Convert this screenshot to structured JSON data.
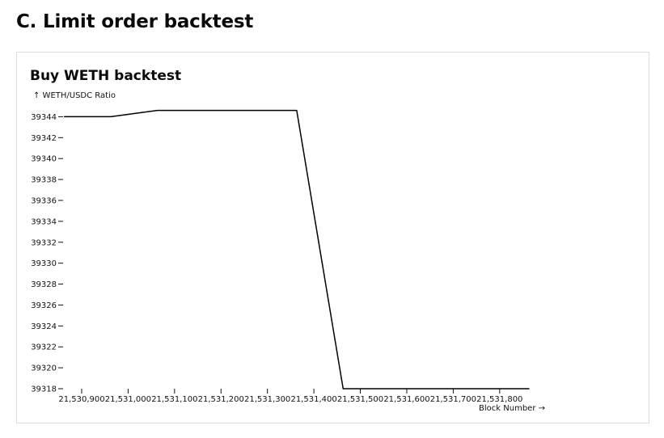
{
  "page": {
    "section_title": "C. Limit order backtest"
  },
  "chart_data": {
    "type": "line",
    "title": "Buy WETH backtest",
    "ylabel": "↑ WETH/USDC Ratio",
    "xlabel": "Block Number →",
    "xlim": [
      21530860,
      21531870
    ],
    "ylim": [
      39318,
      39345.5
    ],
    "x_ticks": [
      21530900,
      21531000,
      21531100,
      21531200,
      21531300,
      21531400,
      21531500,
      21531600,
      21531700,
      21531800
    ],
    "x_tick_labels": [
      "21,530,900",
      "21,531,000",
      "21,531,100",
      "21,531,200",
      "21,531,300",
      "21,531,400",
      "21,531,500",
      "21,531,600",
      "21,531,700",
      "21,531,800"
    ],
    "y_ticks": [
      39318,
      39320,
      39322,
      39324,
      39326,
      39328,
      39330,
      39332,
      39334,
      39336,
      39338,
      39340,
      39342,
      39344
    ],
    "y_tick_labels": [
      "39318",
      "39320",
      "39322",
      "39324",
      "39326",
      "39328",
      "39330",
      "39332",
      "39334",
      "39336",
      "39338",
      "39340",
      "39342",
      "39344"
    ],
    "grid": false,
    "series": [
      {
        "color": "#000000",
        "x": [
          21530863,
          21530963,
          21531063,
          21531363,
          21531463,
          21531863
        ],
        "y": [
          39344,
          39344,
          39344.6,
          39344.6,
          39318,
          39318
        ]
      }
    ]
  }
}
